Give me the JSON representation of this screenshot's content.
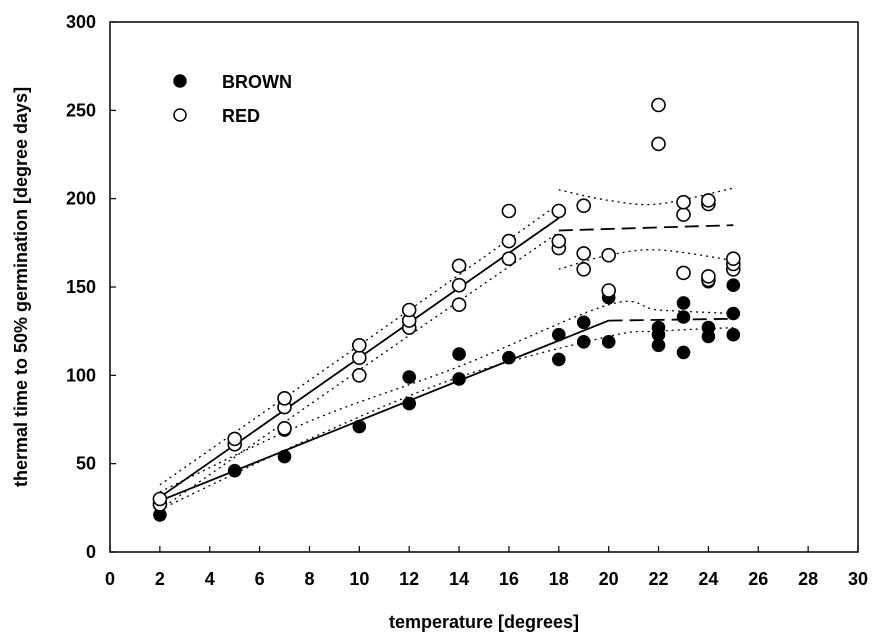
{
  "chart_data": {
    "type": "scatter",
    "title": "",
    "xlabel": "temperature [degrees]",
    "ylabel": "thermal time to 50% germination [degree days]",
    "xlim": [
      0,
      30
    ],
    "ylim": [
      0,
      300
    ],
    "xticks": [
      "0",
      "2",
      "4",
      "6",
      "8",
      "10",
      "12",
      "14",
      "16",
      "18",
      "20",
      "22",
      "24",
      "26",
      "28",
      "30"
    ],
    "yticks": [
      "0",
      "50",
      "100",
      "150",
      "200",
      "250",
      "300"
    ],
    "grid": false,
    "legend_position": "top-left",
    "series": [
      {
        "name": "BROWN",
        "marker": "filled-circle",
        "color": "#000000",
        "points": [
          [
            2,
            21
          ],
          [
            5,
            46
          ],
          [
            7,
            54
          ],
          [
            7,
            69
          ],
          [
            10,
            71
          ],
          [
            12,
            84
          ],
          [
            12,
            99
          ],
          [
            14,
            98
          ],
          [
            14,
            112
          ],
          [
            16,
            110
          ],
          [
            18,
            109
          ],
          [
            18,
            123
          ],
          [
            19,
            119
          ],
          [
            19,
            130
          ],
          [
            20,
            119
          ],
          [
            20,
            144
          ],
          [
            22,
            117
          ],
          [
            22,
            123
          ],
          [
            22,
            127
          ],
          [
            23,
            113
          ],
          [
            23,
            133
          ],
          [
            23,
            141
          ],
          [
            24,
            122
          ],
          [
            24,
            127
          ],
          [
            24,
            153
          ],
          [
            25,
            123
          ],
          [
            25,
            135
          ],
          [
            25,
            151
          ]
        ],
        "fit": {
          "style": "solid",
          "points": [
            [
              2,
              29
            ],
            [
              20,
              131
            ]
          ]
        },
        "plateau": {
          "style": "dashed",
          "points": [
            [
              20,
              131
            ],
            [
              25,
              132
            ]
          ]
        },
        "ci_upper": [
          [
            2,
            34
          ],
          [
            8,
            74
          ],
          [
            14,
            105
          ],
          [
            20,
            140
          ],
          [
            22,
            137
          ],
          [
            25,
            135
          ]
        ],
        "ci_lower": [
          [
            2,
            24
          ],
          [
            8,
            64
          ],
          [
            14,
            99
          ],
          [
            20,
            122
          ],
          [
            22,
            125
          ],
          [
            25,
            127
          ]
        ]
      },
      {
        "name": "RED",
        "marker": "open-circle",
        "color": "#000000",
        "points": [
          [
            2,
            27
          ],
          [
            2,
            30
          ],
          [
            5,
            61
          ],
          [
            5,
            64
          ],
          [
            7,
            70
          ],
          [
            7,
            82
          ],
          [
            7,
            87
          ],
          [
            10,
            100
          ],
          [
            10,
            110
          ],
          [
            10,
            117
          ],
          [
            12,
            127
          ],
          [
            12,
            131
          ],
          [
            12,
            137
          ],
          [
            14,
            140
          ],
          [
            14,
            151
          ],
          [
            14,
            162
          ],
          [
            16,
            166
          ],
          [
            16,
            176
          ],
          [
            16,
            193
          ],
          [
            18,
            172
          ],
          [
            18,
            176
          ],
          [
            18,
            193
          ],
          [
            19,
            160
          ],
          [
            19,
            169
          ],
          [
            19,
            196
          ],
          [
            20,
            148
          ],
          [
            20,
            168
          ],
          [
            22,
            231
          ],
          [
            22,
            253
          ],
          [
            23,
            158
          ],
          [
            23,
            191
          ],
          [
            23,
            198
          ],
          [
            24,
            154
          ],
          [
            24,
            156
          ],
          [
            24,
            197
          ],
          [
            24,
            199
          ],
          [
            25,
            160
          ],
          [
            25,
            163
          ],
          [
            25,
            166
          ]
        ],
        "fit": {
          "style": "solid",
          "points": [
            [
              2,
              31
            ],
            [
              18,
              189
            ]
          ]
        },
        "plateau": {
          "style": "dashed",
          "points": [
            [
              18,
              182
            ],
            [
              25,
              185
            ]
          ]
        },
        "ci_upper": [
          [
            2,
            38
          ],
          [
            10,
            117
          ],
          [
            18,
            197
          ]
        ],
        "ci_lower": [
          [
            2,
            24
          ],
          [
            10,
            103
          ],
          [
            18,
            181
          ]
        ],
        "ci_upper_plateau": [
          [
            18,
            205
          ],
          [
            20,
            199
          ],
          [
            22,
            197
          ],
          [
            25,
            206
          ]
        ],
        "ci_lower_plateau": [
          [
            18,
            160
          ],
          [
            20,
            168
          ],
          [
            22,
            171
          ],
          [
            25,
            165
          ]
        ]
      }
    ]
  }
}
